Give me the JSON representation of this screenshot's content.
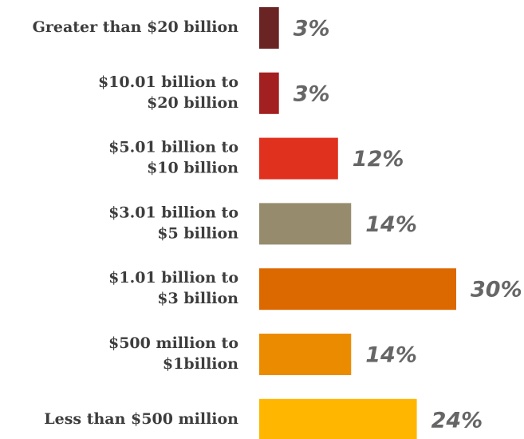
{
  "chart_data": {
    "type": "bar",
    "orientation": "horizontal",
    "categories": [
      [
        "Greater than $20 billion"
      ],
      [
        "$10.01 billion to",
        "$20 billion"
      ],
      [
        "$5.01 billion to",
        "$10 billion"
      ],
      [
        "$3.01 billion to",
        "$5 billion"
      ],
      [
        "$1.01 billion to",
        "$3 billion"
      ],
      [
        "$500 million to",
        "$1billion"
      ],
      [
        "Less than $500 million"
      ]
    ],
    "values": [
      3,
      3,
      12,
      14,
      30,
      14,
      24
    ],
    "value_labels": [
      "3%",
      "3%",
      "12%",
      "14%",
      "30%",
      "14%",
      "24%"
    ],
    "colors": [
      "#6b2424",
      "#a32020",
      "#e0301e",
      "#968c6d",
      "#dc6900",
      "#eb8c00",
      "#ffb600"
    ]
  }
}
